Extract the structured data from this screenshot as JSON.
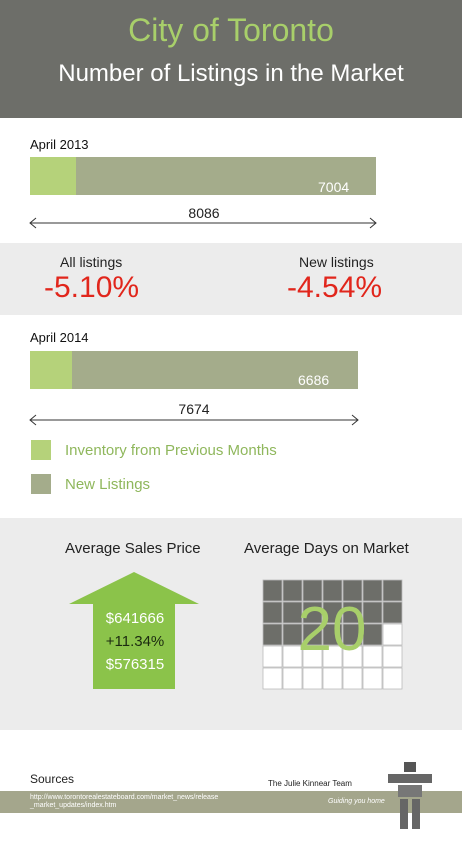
{
  "header": {
    "title": "City of Toronto",
    "subtitle": "Number of Listings in the Market"
  },
  "chart_data": [
    {
      "type": "bar",
      "orientation": "horizontal",
      "stacked": true,
      "series": [
        {
          "name": "Inventory from Previous Months",
          "color": "#b5d27a"
        },
        {
          "name": "New Listings",
          "color": "#a4ac8b"
        }
      ],
      "periods": [
        {
          "label": "April 2013",
          "new_listings": 7004,
          "inventory_previous": 1082,
          "total": 8086,
          "new_label": "7004",
          "total_label": "8086"
        },
        {
          "label": "April 2014",
          "new_listings": 6686,
          "inventory_previous": 988,
          "total": 7674,
          "new_label": "6686",
          "total_label": "7674"
        }
      ],
      "changes": [
        {
          "label": "All listings",
          "value": "-5.10%"
        },
        {
          "label": "New listings",
          "value": "-4.54%"
        }
      ]
    }
  ],
  "stats": {
    "price": {
      "title": "Average Sales Price",
      "current": "$641666",
      "change": "+11.34%",
      "previous": "$576315",
      "arrow_color": "#8bc34a"
    },
    "days": {
      "title": "Average Days on Market",
      "value": "20",
      "calendar_filled": 20,
      "calendar_total": 35
    }
  },
  "footer": {
    "sources_label": "Sources",
    "url": "http://www.torontorealestateboard.com/market_news/release_market_updates/index.htm",
    "brand": "The Julie Kinnear Team",
    "tagline": "Guiding you home"
  }
}
